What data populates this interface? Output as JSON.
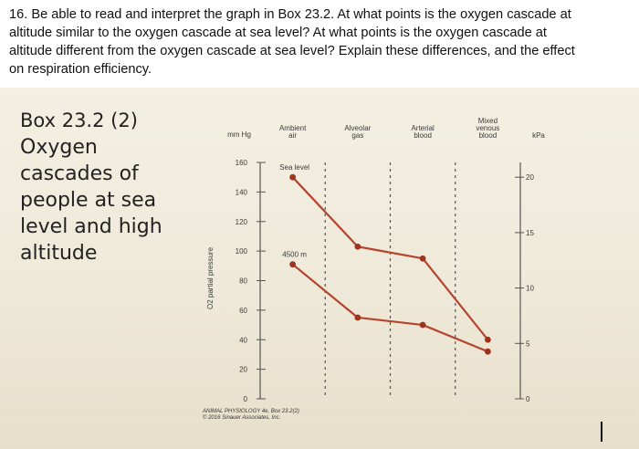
{
  "question": {
    "text": "16. Be able to read and interpret the graph in Box 23.2. At what points is the oxygen cascade at\naltitude similar to the oxygen cascade at sea level? At what points is the oxygen cascade at\naltitude different from the oxygen cascade at sea level? Explain these differences, and the effect\non respiration efficiency."
  },
  "box": {
    "heading": "Box 23.2 (2)",
    "line1": "Oxygen",
    "line2": "cascades of",
    "line3": "people at sea",
    "line4": "level and high",
    "line5": "altitude"
  },
  "caption": {
    "text": "ANIMAL PHYSIOLOGY 4e, Box 23.2(2)\n© 2016 Sinauer Associates, Inc."
  },
  "colors": {
    "line": "#b5442f",
    "marker": "#a03220",
    "text": "#3a3a3a",
    "grid": "#555555"
  },
  "chart_data": {
    "type": "line",
    "title": "",
    "categories": [
      "Ambient air",
      "Alveolar gas",
      "Arterial blood",
      "Mixed venous blood"
    ],
    "category_labels": [
      [
        "Ambient",
        "air"
      ],
      [
        "Alveolar",
        "gas"
      ],
      [
        "Arterial",
        "blood"
      ],
      [
        "Mixed",
        "venous",
        "blood"
      ]
    ],
    "left_unit": "mm Hg",
    "right_unit": "kPa",
    "ylabel": "O2 partial pressure",
    "ylim": [
      0,
      160
    ],
    "left_ticks": [
      "0",
      "20",
      "40",
      "60",
      "80",
      "100",
      "120",
      "140",
      "160"
    ],
    "right_ticks": [
      "0",
      "5",
      "10",
      "15",
      "20"
    ],
    "series": [
      {
        "name": "Sea level",
        "points": [
          {
            "x": 0.5,
            "y": 150
          },
          {
            "x": 1.5,
            "y": 103
          },
          {
            "x": 2.5,
            "y": 95
          },
          {
            "x": 3.5,
            "y": 40
          }
        ]
      },
      {
        "name": "4500 m",
        "points": [
          {
            "x": 0.5,
            "y": 91
          },
          {
            "x": 1.5,
            "y": 55
          },
          {
            "x": 2.5,
            "y": 50
          },
          {
            "x": 3.5,
            "y": 32
          }
        ]
      }
    ]
  }
}
